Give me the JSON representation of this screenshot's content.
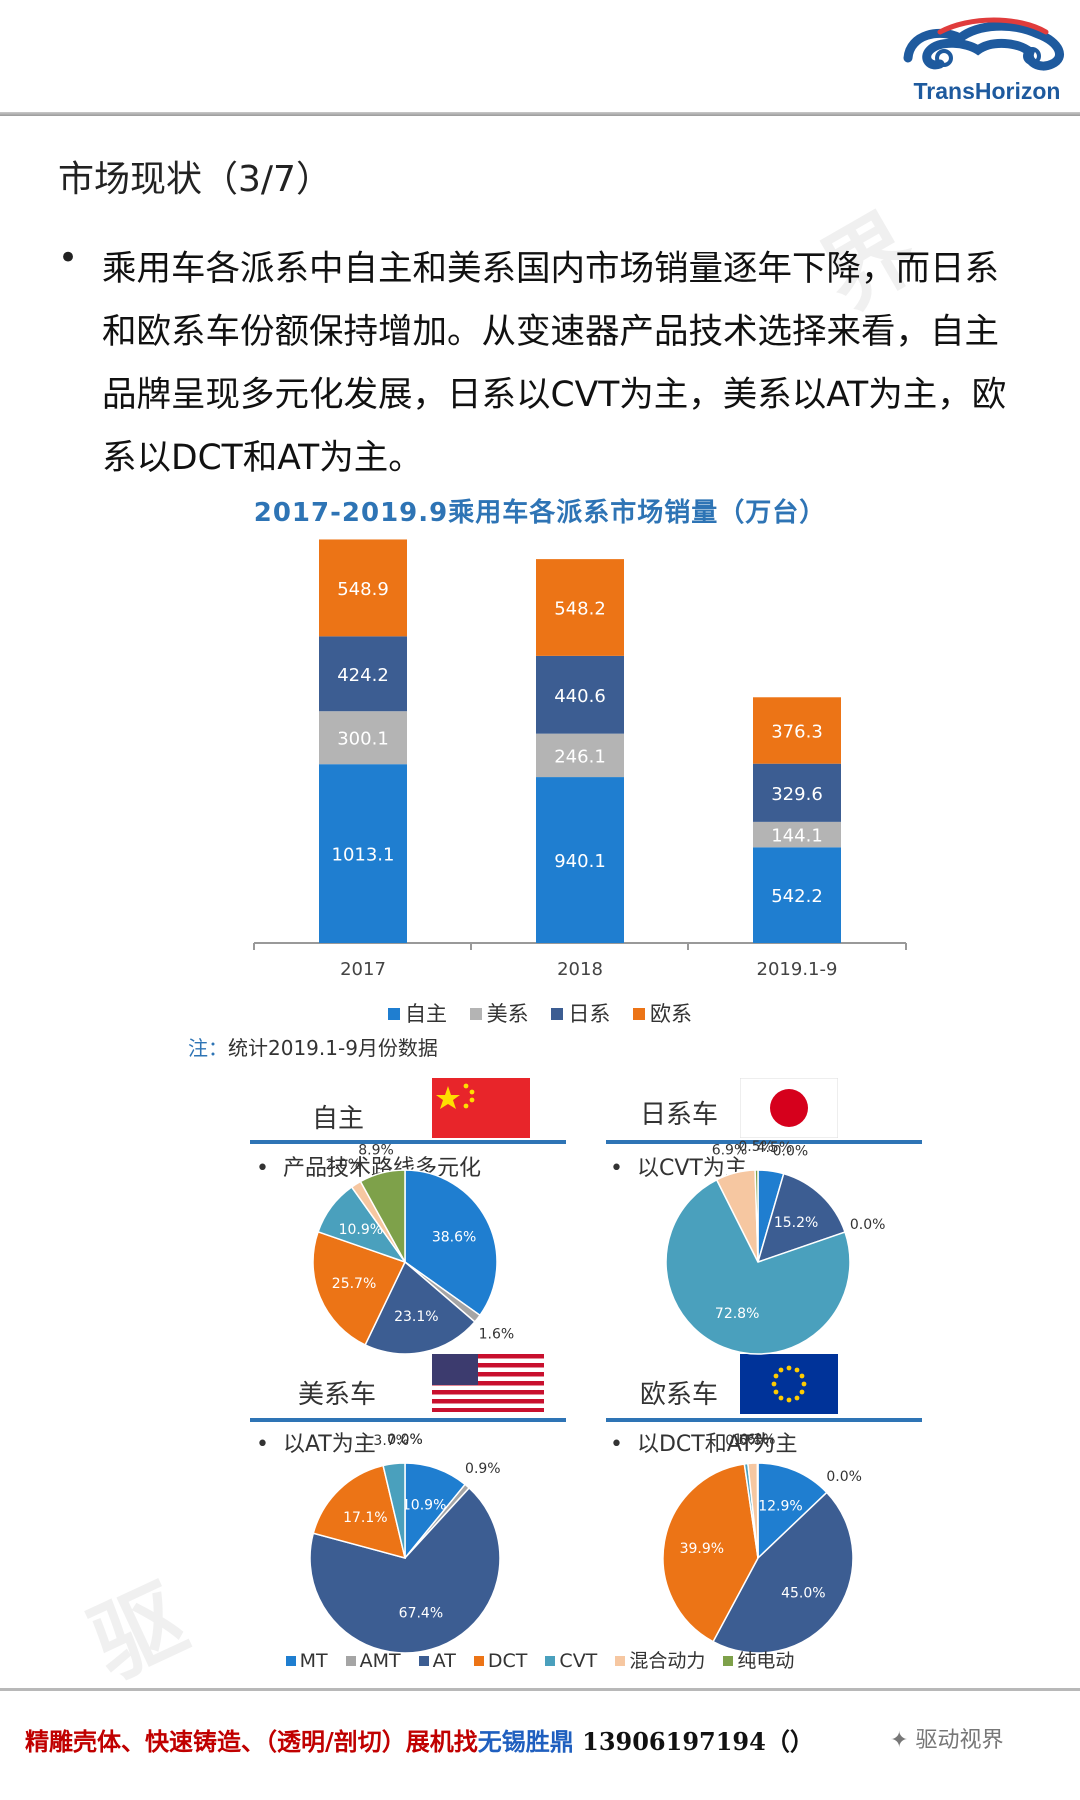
{
  "brand": {
    "logo_text": "TransHorizon"
  },
  "page_title": "市场现状（3/7）",
  "bullet": {
    "marker": "•",
    "text": "乘用车各派系中自主和美系国内市场销量逐年下降，而日系和欧系车份额保持增加。从变速器产品技术选择来看，自主品牌呈现多元化发展，日系以CVT为主，美系以AT为主，欧系以DCT和AT为主。"
  },
  "colors": {
    "zizhu": "#1f7ed0",
    "meixi": "#b4b4b4",
    "rixi": "#3c5d92",
    "ouxi": "#ec7416",
    "MT": "#1f7ed0",
    "AMT": "#a5a5a5",
    "AT": "#3c5d92",
    "DCT": "#ec7416",
    "CVT": "#4aa0bd",
    "hybrid": "#f6c7a1",
    "ev": "#7ea14a",
    "rule": "#2e74b5"
  },
  "chart_data": [
    {
      "type": "bar",
      "stacked": true,
      "title": "2017-2019.9乘用车各派系市场销量（万台）",
      "categories": [
        "2017",
        "2018",
        "2019.1-9"
      ],
      "series": [
        {
          "name": "自主",
          "values": [
            1013.1,
            940.1,
            542.2
          ]
        },
        {
          "name": "美系",
          "values": [
            300.1,
            246.1,
            144.1
          ]
        },
        {
          "name": "日系",
          "values": [
            424.2,
            440.6,
            329.6
          ]
        },
        {
          "name": "欧系",
          "values": [
            548.9,
            548.2,
            376.3
          ]
        }
      ],
      "legend": "bottom",
      "note": {
        "lead": "注：",
        "text": "统计2019.1-9月份数据"
      }
    },
    {
      "type": "pie",
      "panel": "自主",
      "subtitle": "产品技术路线多元化",
      "labels": [
        "MT",
        "AMT",
        "AT",
        "DCT",
        "CVT",
        "混合动力",
        "纯电动"
      ],
      "values": [
        38.6,
        1.6,
        23.1,
        25.7,
        10.9,
        2.0,
        8.9
      ],
      "value_labels": [
        "38.6%",
        "1.6%",
        "23.1%",
        "25.7%",
        "10.9%",
        "2.0%",
        "8.9%"
      ]
    },
    {
      "type": "pie",
      "panel": "日系车",
      "subtitle": "以CVT为主",
      "labels": [
        "MT",
        "AMT",
        "AT",
        "DCT",
        "CVT",
        "混合动力",
        "纯电动"
      ],
      "values": [
        4.5,
        0.0,
        15.2,
        0.0,
        72.8,
        6.9,
        0.5
      ],
      "value_labels": [
        "4.5%",
        "0.0%",
        "15.2%",
        "0.0%",
        "72.8%",
        "6.9%",
        "0.5%"
      ]
    },
    {
      "type": "pie",
      "panel": "美系车",
      "subtitle": "以AT为主",
      "labels": [
        "MT",
        "AMT",
        "AT",
        "DCT",
        "CVT",
        "混合动力",
        "纯电动"
      ],
      "values": [
        10.9,
        0.9,
        67.4,
        17.1,
        3.7,
        0.0,
        0.0
      ],
      "value_labels": [
        "10.9%",
        "0.9%",
        "67.4%",
        "17.1%",
        "3.7%",
        "0.0%",
        "0.0%"
      ]
    },
    {
      "type": "pie",
      "panel": "欧系车",
      "subtitle": "以DCT和AT为主",
      "labels": [
        "MT",
        "AMT",
        "AT",
        "DCT",
        "CVT",
        "混合动力",
        "纯电动"
      ],
      "values": [
        12.9,
        0.0,
        45.0,
        39.9,
        0.6,
        1.6,
        0.1
      ],
      "value_labels": [
        "12.9%",
        "0.0%",
        "45.0%",
        "39.9%",
        "0.6%",
        "1.6%",
        "0.1%"
      ]
    }
  ],
  "pie_legend": [
    "MT",
    "AMT",
    "AT",
    "DCT",
    "CVT",
    "混合动力",
    "纯电动"
  ],
  "footer": {
    "part1": "精雕壳体、快速铸造、（透明/剖切）展机找",
    "part2": "无锡胜鼎",
    "part3": "13906197194（",
    "part4": "）"
  },
  "wechat": "驱动视界"
}
